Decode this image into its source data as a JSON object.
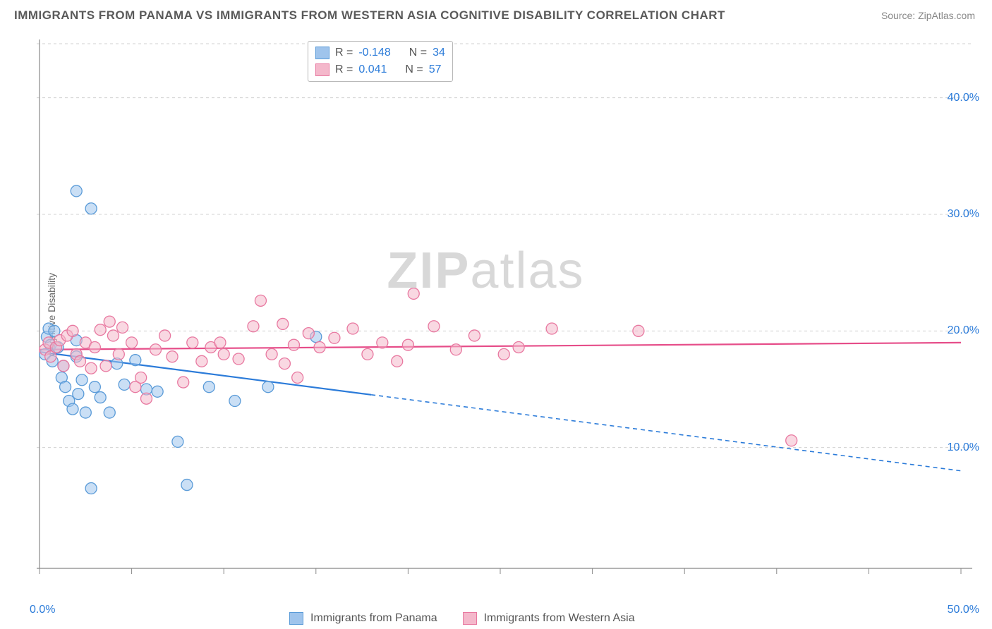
{
  "title": "IMMIGRANTS FROM PANAMA VS IMMIGRANTS FROM WESTERN ASIA COGNITIVE DISABILITY CORRELATION CHART",
  "source": "Source: ZipAtlas.com",
  "ylabel": "Cognitive Disability",
  "watermark_a": "ZIP",
  "watermark_b": "atlas",
  "chart": {
    "type": "scatter",
    "xlim": [
      0,
      50
    ],
    "ylim": [
      0,
      45
    ],
    "xtick_positions": [
      0,
      5,
      10,
      15,
      20,
      25,
      30,
      35,
      40,
      45,
      50
    ],
    "ytick_labels": [
      {
        "y": 10,
        "label": "10.0%"
      },
      {
        "y": 20,
        "label": "20.0%"
      },
      {
        "y": 30,
        "label": "30.0%"
      },
      {
        "y": 40,
        "label": "40.0%"
      }
    ],
    "x_axis_label_min": "0.0%",
    "x_axis_label_max": "50.0%",
    "axis_color": "#888888",
    "grid_color": "#d0d0d0",
    "background": "#ffffff",
    "marker_radius": 8,
    "marker_stroke": 1.3,
    "series": [
      {
        "name": "Immigrants from Panama",
        "fill": "#9fc4ec",
        "stroke": "#5a9bd8",
        "line_color": "#2b7bd9",
        "R": "-0.148",
        "N": "34",
        "trend": {
          "x1": 0,
          "y1": 18.2,
          "x2": 50,
          "y2": 8.0,
          "solid_until_x": 18
        },
        "points": [
          [
            0.3,
            18.0
          ],
          [
            0.4,
            19.5
          ],
          [
            0.5,
            20.2
          ],
          [
            0.6,
            18.8
          ],
          [
            0.7,
            17.4
          ],
          [
            0.8,
            20.0
          ],
          [
            1.0,
            18.6
          ],
          [
            1.2,
            16.0
          ],
          [
            1.3,
            17.0
          ],
          [
            1.4,
            15.2
          ],
          [
            1.6,
            14.0
          ],
          [
            1.8,
            13.3
          ],
          [
            2.0,
            17.8
          ],
          [
            2.1,
            14.6
          ],
          [
            2.3,
            15.8
          ],
          [
            2.0,
            32.0
          ],
          [
            2.8,
            30.5
          ],
          [
            2.5,
            13.0
          ],
          [
            2.8,
            6.5
          ],
          [
            3.0,
            15.2
          ],
          [
            3.3,
            14.3
          ],
          [
            3.8,
            13.0
          ],
          [
            4.2,
            17.2
          ],
          [
            4.6,
            15.4
          ],
          [
            5.2,
            17.5
          ],
          [
            5.8,
            15.0
          ],
          [
            6.4,
            14.8
          ],
          [
            7.5,
            10.5
          ],
          [
            8.0,
            6.8
          ],
          [
            9.2,
            15.2
          ],
          [
            10.6,
            14.0
          ],
          [
            12.4,
            15.2
          ],
          [
            15.0,
            19.5
          ],
          [
            2.0,
            19.2
          ]
        ]
      },
      {
        "name": "Immigrants from Western Asia",
        "fill": "#f4b8cb",
        "stroke": "#e878a0",
        "line_color": "#e64d89",
        "R": "0.041",
        "N": "57",
        "trend": {
          "x1": 0,
          "y1": 18.4,
          "x2": 50,
          "y2": 19.0,
          "solid_until_x": 50
        },
        "points": [
          [
            0.3,
            18.4
          ],
          [
            0.5,
            19.0
          ],
          [
            0.6,
            17.8
          ],
          [
            0.9,
            18.6
          ],
          [
            1.1,
            19.2
          ],
          [
            1.3,
            17.0
          ],
          [
            1.5,
            19.6
          ],
          [
            1.8,
            20.0
          ],
          [
            2.0,
            18.0
          ],
          [
            2.2,
            17.4
          ],
          [
            2.5,
            19.0
          ],
          [
            2.8,
            16.8
          ],
          [
            3.0,
            18.6
          ],
          [
            3.3,
            20.1
          ],
          [
            3.6,
            17.0
          ],
          [
            4.0,
            19.6
          ],
          [
            4.3,
            18.0
          ],
          [
            4.5,
            20.3
          ],
          [
            5.0,
            19.0
          ],
          [
            5.2,
            15.2
          ],
          [
            5.5,
            16.0
          ],
          [
            5.8,
            14.2
          ],
          [
            6.3,
            18.4
          ],
          [
            6.8,
            19.6
          ],
          [
            7.2,
            17.8
          ],
          [
            7.8,
            15.6
          ],
          [
            8.3,
            19.0
          ],
          [
            8.8,
            17.4
          ],
          [
            9.3,
            18.6
          ],
          [
            9.8,
            19.0
          ],
          [
            10.0,
            18.0
          ],
          [
            10.8,
            17.6
          ],
          [
            11.6,
            20.4
          ],
          [
            12.0,
            22.6
          ],
          [
            12.6,
            18.0
          ],
          [
            13.2,
            20.6
          ],
          [
            13.3,
            17.2
          ],
          [
            13.8,
            18.8
          ],
          [
            14.0,
            16.0
          ],
          [
            14.6,
            19.8
          ],
          [
            15.2,
            18.6
          ],
          [
            16.0,
            19.4
          ],
          [
            17.0,
            20.2
          ],
          [
            17.8,
            18.0
          ],
          [
            18.6,
            19.0
          ],
          [
            19.4,
            17.4
          ],
          [
            20.0,
            18.8
          ],
          [
            20.3,
            23.2
          ],
          [
            21.4,
            20.4
          ],
          [
            22.6,
            18.4
          ],
          [
            23.6,
            19.6
          ],
          [
            25.2,
            18.0
          ],
          [
            26.0,
            18.6
          ],
          [
            27.8,
            20.2
          ],
          [
            32.5,
            20.0
          ],
          [
            40.8,
            10.6
          ],
          [
            3.8,
            20.8
          ]
        ]
      }
    ]
  },
  "legend_bottom": [
    {
      "label": "Immigrants from Panama",
      "fill": "#9fc4ec",
      "stroke": "#5a9bd8"
    },
    {
      "label": "Immigrants from Western Asia",
      "fill": "#f4b8cb",
      "stroke": "#e878a0"
    }
  ]
}
